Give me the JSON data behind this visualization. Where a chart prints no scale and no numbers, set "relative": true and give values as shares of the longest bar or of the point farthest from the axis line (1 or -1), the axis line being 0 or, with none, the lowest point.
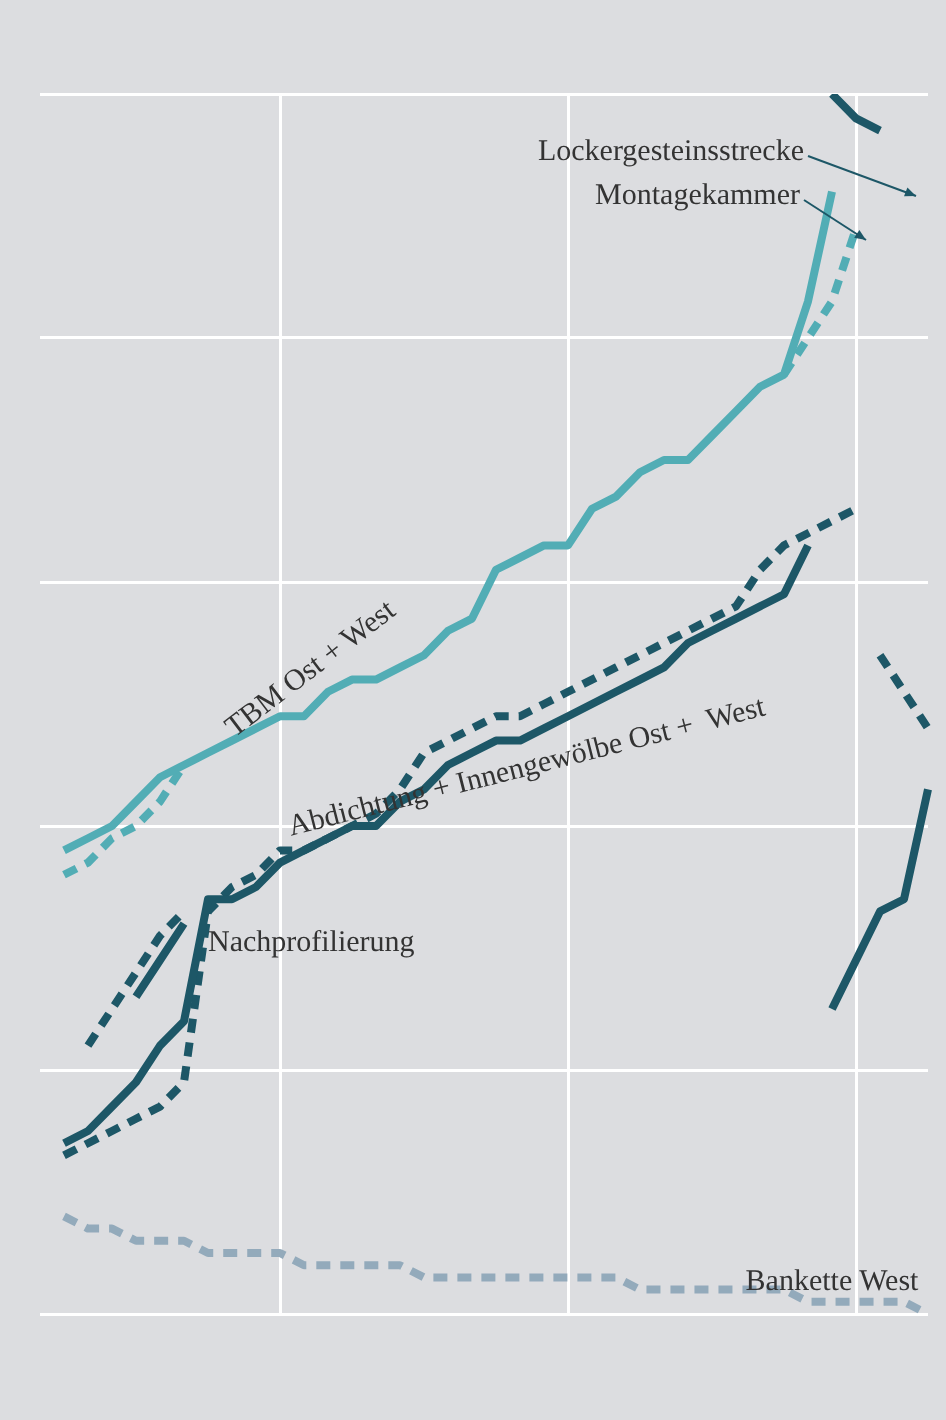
{
  "chart_data": {
    "type": "line",
    "relative": true,
    "grid": true,
    "legend": false,
    "marker": "none",
    "annotations": [
      "Lockergesteinsstrecke",
      "Montagekammer"
    ],
    "categories": [
      null,
      null,
      null,
      null,
      null,
      null,
      null,
      null,
      null,
      null,
      null,
      null,
      null,
      null,
      null,
      null,
      null,
      null,
      null,
      null,
      null,
      null,
      null,
      null,
      null,
      null,
      null,
      null,
      null,
      null,
      null,
      null,
      null,
      null,
      null,
      null,
      null,
      null
    ],
    "series": [
      {
        "name": "TBM Ost + West",
        "color": "#52adb5",
        "line_style": "solid",
        "values": [
          null,
          0.38,
          0.39,
          0.4,
          0.42,
          0.44,
          0.45,
          0.46,
          0.47,
          0.48,
          0.49,
          0.49,
          0.51,
          0.52,
          0.52,
          0.53,
          0.54,
          0.56,
          0.57,
          0.61,
          0.62,
          0.63,
          0.63,
          0.66,
          0.67,
          0.69,
          0.7,
          0.7,
          0.72,
          0.74,
          0.76,
          0.77,
          0.83,
          0.92,
          null,
          null,
          null,
          null
        ]
      },
      {
        "color": "#52adb5",
        "line_style": "dashed",
        "values": [
          null,
          0.36,
          0.37,
          0.39,
          0.4,
          0.42,
          0.45,
          null,
          null,
          null,
          null,
          null,
          null,
          null,
          null,
          null,
          null,
          null,
          null,
          null,
          null,
          null,
          null,
          null,
          null,
          null,
          null,
          null,
          null,
          null,
          null,
          0.77,
          0.8,
          0.83,
          0.89,
          null,
          null,
          null
        ]
      },
      {
        "name": "Abdichtung + Innengewölbe Ost +  West",
        "color": "#1d5767",
        "line_style": "solid",
        "values": [
          null,
          0.14,
          0.15,
          0.17,
          0.19,
          0.22,
          0.24,
          0.34,
          0.34,
          0.35,
          0.37,
          0.38,
          0.39,
          0.4,
          0.4,
          0.42,
          0.43,
          0.45,
          0.46,
          0.47,
          0.47,
          0.48,
          0.49,
          0.5,
          0.51,
          0.52,
          0.53,
          0.55,
          0.56,
          0.57,
          0.58,
          0.59,
          0.63,
          null,
          null,
          null,
          null,
          null
        ]
      },
      {
        "color": "#1d5767",
        "line_style": "dashed",
        "values": [
          null,
          0.13,
          0.14,
          0.15,
          0.16,
          0.17,
          0.19,
          0.33,
          0.35,
          0.36,
          0.38,
          0.38,
          0.39,
          0.4,
          0.41,
          0.43,
          0.46,
          0.47,
          0.48,
          0.49,
          0.49,
          0.5,
          0.51,
          0.52,
          0.53,
          0.54,
          0.55,
          0.56,
          0.57,
          0.58,
          0.61,
          0.63,
          0.64,
          0.65,
          0.66,
          null,
          null,
          null
        ]
      },
      {
        "name": "Nachprofilierung",
        "color": "#1d5767",
        "line_style": "solid",
        "values": [
          null,
          null,
          null,
          null,
          0.26,
          0.29,
          0.32,
          null,
          null,
          null,
          null,
          null,
          null,
          null,
          null,
          null,
          null,
          null,
          null,
          null,
          null,
          null,
          null,
          null,
          null,
          null,
          null,
          null,
          null,
          null,
          null,
          null,
          null,
          null,
          null,
          null,
          null,
          null
        ]
      },
      {
        "color": "#1d5767",
        "line_style": "dashed",
        "values": [
          null,
          null,
          0.22,
          0.25,
          0.28,
          0.31,
          0.33,
          null,
          null,
          null,
          null,
          null,
          null,
          null,
          null,
          null,
          null,
          null,
          null,
          null,
          null,
          null,
          null,
          null,
          null,
          null,
          null,
          null,
          null,
          null,
          null,
          null,
          null,
          null,
          null,
          null,
          null,
          null
        ]
      },
      {
        "color": "#1d5767",
        "line_style": "solid",
        "values": [
          null,
          null,
          null,
          null,
          null,
          null,
          null,
          null,
          null,
          null,
          null,
          null,
          null,
          null,
          null,
          null,
          null,
          null,
          null,
          null,
          null,
          null,
          null,
          null,
          null,
          null,
          null,
          null,
          null,
          null,
          null,
          null,
          null,
          1,
          0.98,
          0.97,
          null,
          null
        ]
      },
      {
        "color": "#1d5767",
        "line_style": "solid",
        "values": [
          null,
          null,
          null,
          null,
          null,
          null,
          null,
          null,
          null,
          null,
          null,
          null,
          null,
          null,
          null,
          null,
          null,
          null,
          null,
          null,
          null,
          null,
          null,
          null,
          null,
          null,
          null,
          null,
          null,
          null,
          null,
          null,
          null,
          0.25,
          0.29,
          0.33,
          0.34,
          0.43
        ]
      },
      {
        "color": "#1d5767",
        "line_style": "dashed",
        "values": [
          null,
          null,
          null,
          null,
          null,
          null,
          null,
          null,
          null,
          null,
          null,
          null,
          null,
          null,
          null,
          null,
          null,
          null,
          null,
          null,
          null,
          null,
          null,
          null,
          null,
          null,
          null,
          null,
          null,
          null,
          null,
          null,
          null,
          null,
          null,
          0.54,
          0.51,
          0.48
        ]
      },
      {
        "name": "Bankette West",
        "color": "#93aabb",
        "line_style": "dashed",
        "values": [
          null,
          0.08,
          0.07,
          0.07,
          0.06,
          0.06,
          0.06,
          0.05,
          0.05,
          0.05,
          0.05,
          0.04,
          0.04,
          0.04,
          0.04,
          0.04,
          0.03,
          0.03,
          0.03,
          0.03,
          0.03,
          0.03,
          0.03,
          0.03,
          0.03,
          0.02,
          0.02,
          0.02,
          0.02,
          0.02,
          0.02,
          0.02,
          0.01,
          0.01,
          0.01,
          0.01,
          0.01,
          0
        ]
      }
    ]
  }
}
